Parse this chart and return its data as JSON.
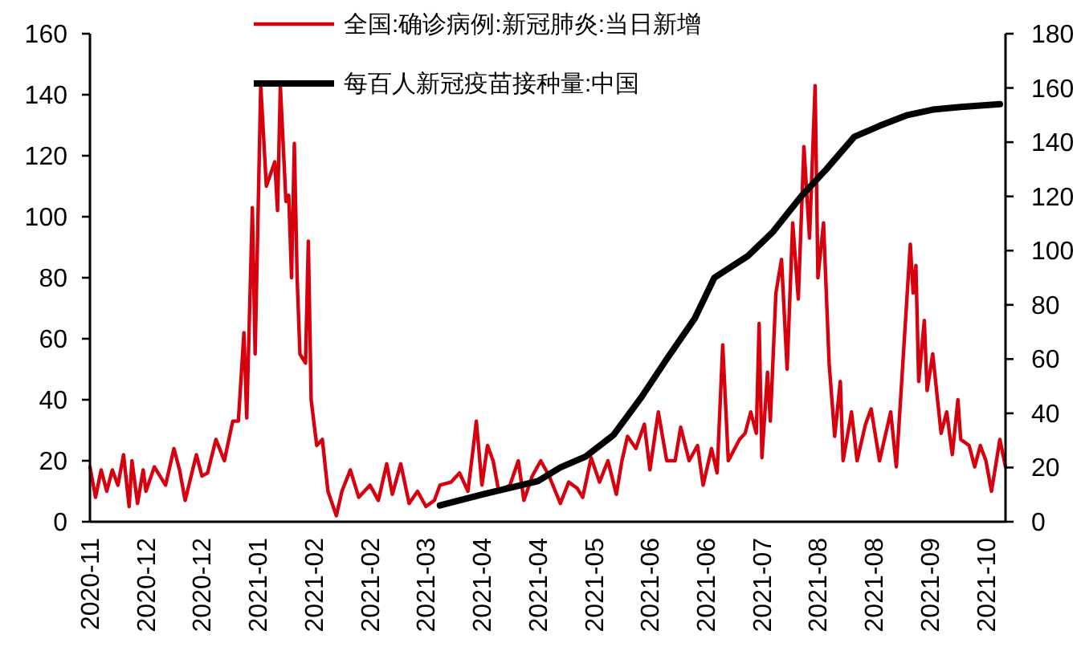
{
  "chart_data": {
    "type": "line",
    "legend": "top",
    "tick_labels": true,
    "xlim": [
      "2020-11-20",
      "2021-10-13"
    ],
    "xticks": [
      {
        "value": "2020-11-20",
        "label": "2020-11"
      },
      {
        "value": "2020-12-10",
        "label": "2020-12"
      },
      {
        "value": "2020-12-30",
        "label": "2020-12"
      },
      {
        "value": "2021-01-19",
        "label": "2021-01"
      },
      {
        "value": "2021-02-08",
        "label": "2021-02"
      },
      {
        "value": "2021-02-28",
        "label": "2021-02"
      },
      {
        "value": "2021-03-20",
        "label": "2021-03"
      },
      {
        "value": "2021-04-09",
        "label": "2021-04"
      },
      {
        "value": "2021-04-29",
        "label": "2021-04"
      },
      {
        "value": "2021-05-19",
        "label": "2021-05"
      },
      {
        "value": "2021-06-08",
        "label": "2021-06"
      },
      {
        "value": "2021-06-28",
        "label": "2021-06"
      },
      {
        "value": "2021-07-18",
        "label": "2021-07"
      },
      {
        "value": "2021-08-07",
        "label": "2021-08"
      },
      {
        "value": "2021-08-27",
        "label": "2021-08"
      },
      {
        "value": "2021-09-16",
        "label": "2021-09"
      },
      {
        "value": "2021-10-06",
        "label": "2021-10"
      }
    ],
    "ylim": [
      0,
      160
    ],
    "yticks": [
      0,
      20,
      40,
      60,
      80,
      100,
      120,
      140,
      160
    ],
    "y2lim": [
      0,
      180
    ],
    "y2ticks": [
      0,
      20,
      40,
      60,
      80,
      100,
      120,
      140,
      160,
      180
    ],
    "series": [
      {
        "name": "全国:确诊病例:新冠肺炎:当日新增",
        "color": "#d7000f",
        "x": [
          "2020-11-20",
          "2020-11-22",
          "2020-11-24",
          "2020-11-26",
          "2020-11-28",
          "2020-11-30",
          "2020-12-02",
          "2020-12-04",
          "2020-12-05",
          "2020-12-07",
          "2020-12-09",
          "2020-12-10",
          "2020-12-13",
          "2020-12-17",
          "2020-12-20",
          "2020-12-22",
          "2020-12-24",
          "2020-12-28",
          "2020-12-30",
          "2021-01-01",
          "2021-01-04",
          "2021-01-07",
          "2021-01-10",
          "2021-01-12",
          "2021-01-14",
          "2021-01-15",
          "2021-01-17",
          "2021-01-18",
          "2021-01-20",
          "2021-01-22",
          "2021-01-25",
          "2021-01-26",
          "2021-01-27",
          "2021-01-29",
          "2021-01-30",
          "2021-01-31",
          "2021-02-01",
          "2021-02-02",
          "2021-02-03",
          "2021-02-05",
          "2021-02-06",
          "2021-02-07",
          "2021-02-09",
          "2021-02-11",
          "2021-02-13",
          "2021-02-16",
          "2021-02-18",
          "2021-02-21",
          "2021-02-24",
          "2021-02-28",
          "2021-03-03",
          "2021-03-06",
          "2021-03-08",
          "2021-03-11",
          "2021-03-14",
          "2021-03-17",
          "2021-03-20",
          "2021-03-23",
          "2021-03-25",
          "2021-03-29",
          "2021-04-01",
          "2021-04-04",
          "2021-04-06",
          "2021-04-07",
          "2021-04-09",
          "2021-04-11",
          "2021-04-13",
          "2021-04-15",
          "2021-04-19",
          "2021-04-22",
          "2021-04-24",
          "2021-04-27",
          "2021-04-30",
          "2021-05-03",
          "2021-05-07",
          "2021-05-10",
          "2021-05-13",
          "2021-05-15",
          "2021-05-18",
          "2021-05-21",
          "2021-05-24",
          "2021-05-27",
          "2021-05-29",
          "2021-05-31",
          "2021-06-03",
          "2021-06-06",
          "2021-06-08",
          "2021-06-11",
          "2021-06-14",
          "2021-06-17",
          "2021-06-19",
          "2021-06-22",
          "2021-06-25",
          "2021-06-27",
          "2021-06-30",
          "2021-07-02",
          "2021-07-04",
          "2021-07-06",
          "2021-07-10",
          "2021-07-12",
          "2021-07-14",
          "2021-07-16",
          "2021-07-17",
          "2021-07-18",
          "2021-07-20",
          "2021-07-21",
          "2021-07-23",
          "2021-07-25",
          "2021-07-27",
          "2021-07-29",
          "2021-07-31",
          "2021-08-02",
          "2021-08-04",
          "2021-08-06",
          "2021-08-07",
          "2021-08-09",
          "2021-08-11",
          "2021-08-13",
          "2021-08-15",
          "2021-08-16",
          "2021-08-19",
          "2021-08-21",
          "2021-08-24",
          "2021-08-26",
          "2021-08-29",
          "2021-09-02",
          "2021-09-04",
          "2021-09-06",
          "2021-09-09",
          "2021-09-10",
          "2021-09-11",
          "2021-09-12",
          "2021-09-14",
          "2021-09-15",
          "2021-09-17",
          "2021-09-20",
          "2021-09-22",
          "2021-09-24",
          "2021-09-26",
          "2021-09-27",
          "2021-09-30",
          "2021-10-02",
          "2021-10-04",
          "2021-10-06",
          "2021-10-08",
          "2021-10-11",
          "2021-10-13"
        ],
        "values": [
          18,
          8,
          17,
          10,
          17,
          12,
          22,
          5,
          20,
          6,
          17,
          10,
          18,
          12,
          24,
          17,
          7,
          22,
          15,
          16,
          27,
          20,
          33,
          33,
          62,
          34,
          103,
          55,
          143,
          110,
          118,
          102,
          143,
          105,
          107,
          80,
          124,
          80,
          55,
          52,
          92,
          40,
          25,
          27,
          10,
          2,
          10,
          17,
          8,
          12,
          7,
          19,
          9,
          19,
          6,
          10,
          5,
          7,
          12,
          13,
          16,
          10,
          25,
          33,
          12,
          25,
          20,
          10,
          12,
          20,
          7,
          15,
          20,
          15,
          6,
          13,
          11,
          8,
          21,
          13,
          20,
          9,
          20,
          28,
          24,
          32,
          17,
          36,
          20,
          20,
          31,
          20,
          25,
          12,
          24,
          16,
          58,
          20,
          27,
          29,
          36,
          29,
          65,
          21,
          49,
          33,
          75,
          86,
          50,
          98,
          73,
          123,
          93,
          143,
          80,
          98,
          52,
          28,
          46,
          20,
          36,
          20,
          32,
          37,
          20,
          36,
          18,
          47,
          91,
          75,
          84,
          46,
          66,
          43,
          55,
          29,
          36,
          22,
          40,
          27,
          25,
          18,
          25,
          20,
          10,
          27,
          18
        ]
      },
      {
        "name": "每百人新冠疫苗接种量:中国",
        "color": "#000000",
        "axis": "y2",
        "x": [
          "2021-03-25",
          "2021-04-09",
          "2021-04-29",
          "2021-05-07",
          "2021-05-16",
          "2021-05-26",
          "2021-06-05",
          "2021-06-14",
          "2021-06-24",
          "2021-07-01",
          "2021-07-13",
          "2021-07-22",
          "2021-08-01",
          "2021-08-10",
          "2021-08-20",
          "2021-08-29",
          "2021-09-08",
          "2021-09-17",
          "2021-09-27",
          "2021-10-11"
        ],
        "values": [
          6,
          10,
          15,
          20,
          24,
          32,
          46,
          60,
          75,
          90,
          98,
          107,
          120,
          130,
          142,
          146,
          150,
          152,
          153,
          154
        ]
      }
    ]
  }
}
